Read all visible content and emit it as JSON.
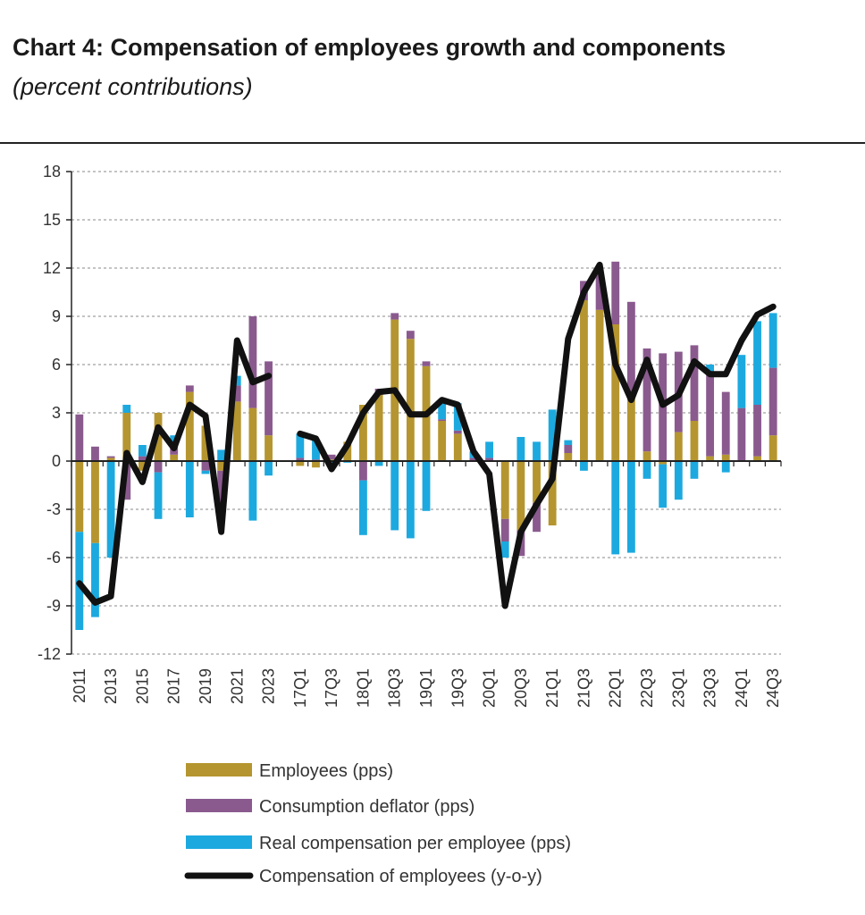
{
  "title": "Chart 4: Compensation of employees growth and components",
  "subtitle": "(percent contributions)",
  "chart_data": {
    "type": "bar",
    "stacked": true,
    "ylim": [
      -12,
      18
    ],
    "yticks": [
      18,
      15,
      12,
      9,
      6,
      3,
      0,
      -3,
      -6,
      -9,
      -12
    ],
    "grid": "dashed horizontal",
    "legend_position": "bottom",
    "categories": [
      "2011",
      "2012",
      "2013",
      "2014",
      "2015",
      "2016",
      "2017",
      "2018",
      "2019",
      "2020",
      "2021",
      "2022",
      "2023",
      "",
      "17Q1",
      "17Q2",
      "17Q3",
      "17Q4",
      "18Q1",
      "18Q2",
      "18Q3",
      "18Q4",
      "19Q1",
      "19Q2",
      "19Q3",
      "19Q4",
      "20Q1",
      "20Q2",
      "20Q3",
      "20Q4",
      "21Q1",
      "21Q2",
      "21Q3",
      "21Q4",
      "22Q1",
      "22Q2",
      "22Q3",
      "22Q4",
      "23Q1",
      "23Q2",
      "23Q3",
      "23Q4",
      "24Q1",
      "24Q2",
      "24Q3"
    ],
    "tick_labels": [
      "2011",
      "",
      "2013",
      "",
      "2015",
      "",
      "2017",
      "",
      "2019",
      "",
      "2021",
      "",
      "2023",
      "",
      "17Q1",
      "",
      "17Q3",
      "",
      "18Q1",
      "",
      "18Q3",
      "",
      "19Q1",
      "",
      "19Q3",
      "",
      "20Q1",
      "",
      "20Q3",
      "",
      "21Q1",
      "",
      "21Q3",
      "",
      "22Q1",
      "",
      "22Q3",
      "",
      "23Q1",
      "",
      "23Q3",
      "",
      "24Q1",
      "",
      "24Q3"
    ],
    "series": [
      {
        "name": "Employees (pps)",
        "kind": "bar",
        "color": "#B5952F",
        "values": [
          -4.4,
          -5.1,
          0.2,
          3.0,
          -0.6,
          3.0,
          0.4,
          4.3,
          2.2,
          -0.6,
          3.7,
          3.3,
          1.6,
          null,
          -0.3,
          -0.4,
          0.1,
          1.2,
          3.5,
          4.2,
          8.8,
          7.6,
          5.9,
          2.5,
          1.7,
          0.0,
          0.0,
          -3.6,
          -4.3,
          -2.6,
          -4.0,
          0.5,
          10.0,
          9.4,
          8.5,
          4.3,
          0.6,
          -0.2,
          1.8,
          2.5,
          0.3,
          0.4,
          0.0,
          0.3,
          1.6
        ]
      },
      {
        "name": "Consumption deflator (pps)",
        "kind": "bar",
        "color": "#8A5A8E",
        "values": [
          2.9,
          0.9,
          0.1,
          -2.4,
          0.3,
          -0.7,
          0.6,
          0.4,
          -0.6,
          -2.6,
          1.0,
          5.7,
          4.6,
          null,
          0.2,
          0.1,
          0.3,
          0.0,
          -1.2,
          0.3,
          0.4,
          0.5,
          0.3,
          0.1,
          0.2,
          0.2,
          0.2,
          -1.4,
          -1.6,
          -1.8,
          0.0,
          0.5,
          1.2,
          2.4,
          3.9,
          5.6,
          6.4,
          6.7,
          5.0,
          4.7,
          5.2,
          3.9,
          3.3,
          3.2,
          4.2
        ]
      },
      {
        "name": "Real compensation per employee (pps)",
        "kind": "bar",
        "color": "#1CA9DF",
        "values": [
          -6.1,
          -4.6,
          -6.0,
          0.5,
          0.7,
          -2.9,
          0.6,
          -3.5,
          -0.2,
          0.7,
          0.6,
          -3.7,
          -0.9,
          null,
          1.5,
          1.2,
          -0.3,
          -0.1,
          -3.4,
          -0.3,
          -4.3,
          -4.8,
          -3.1,
          1.0,
          1.7,
          0.4,
          1.0,
          -1.0,
          1.5,
          1.2,
          3.2,
          0.3,
          -0.6,
          0.0,
          -5.8,
          -5.7,
          -1.1,
          -2.7,
          -2.4,
          -1.1,
          0.5,
          -0.7,
          3.3,
          5.2,
          3.4
        ]
      },
      {
        "name": "Compensation of employees (y-o-y)",
        "kind": "line",
        "color": "#111111",
        "values": [
          -7.6,
          -8.8,
          -8.4,
          0.5,
          -1.3,
          2.1,
          0.8,
          3.5,
          2.8,
          -4.4,
          7.5,
          4.9,
          5.3,
          null,
          1.7,
          1.4,
          -0.5,
          1.0,
          3.0,
          4.3,
          4.4,
          2.9,
          2.9,
          3.8,
          3.5,
          0.6,
          -0.8,
          -9.0,
          -4.4,
          -2.7,
          -1.1,
          7.6,
          10.5,
          12.2,
          6.0,
          3.8,
          6.3,
          3.5,
          4.1,
          6.2,
          5.4,
          5.4,
          7.5,
          9.1,
          9.6
        ]
      }
    ]
  }
}
